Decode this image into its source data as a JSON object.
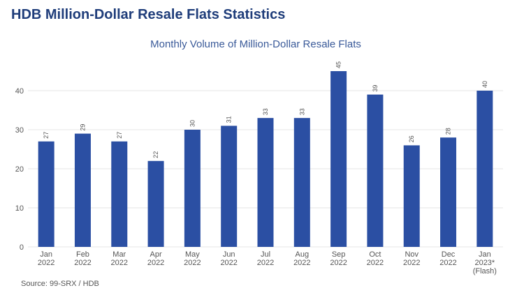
{
  "page": {
    "heading": "HDB Million-Dollar Resale Flats Statistics",
    "source": "Source: 99-SRX / HDB"
  },
  "colors": {
    "heading": "#1f3d7a",
    "chart_title": "#3a5a99",
    "bar": "#2b4fa3",
    "grid": "#e6e6e6",
    "axis_text": "#555555"
  },
  "chart_data": {
    "type": "bar",
    "title": "Monthly Volume of Million-Dollar Resale Flats",
    "xlabel": "",
    "ylabel": "",
    "ylim": [
      0,
      50
    ],
    "yticks": [
      0,
      10,
      20,
      30,
      40
    ],
    "grid": true,
    "categories": [
      [
        "Jan",
        "2022"
      ],
      [
        "Feb",
        "2022"
      ],
      [
        "Mar",
        "2022"
      ],
      [
        "Apr",
        "2022"
      ],
      [
        "May",
        "2022"
      ],
      [
        "Jun",
        "2022"
      ],
      [
        "Jul",
        "2022"
      ],
      [
        "Aug",
        "2022"
      ],
      [
        "Sep",
        "2022"
      ],
      [
        "Oct",
        "2022"
      ],
      [
        "Nov",
        "2022"
      ],
      [
        "Dec",
        "2022"
      ],
      [
        "Jan",
        "2023*",
        "(Flash)"
      ]
    ],
    "values": [
      27,
      29,
      27,
      22,
      30,
      31,
      33,
      33,
      45,
      39,
      26,
      28,
      40
    ]
  }
}
